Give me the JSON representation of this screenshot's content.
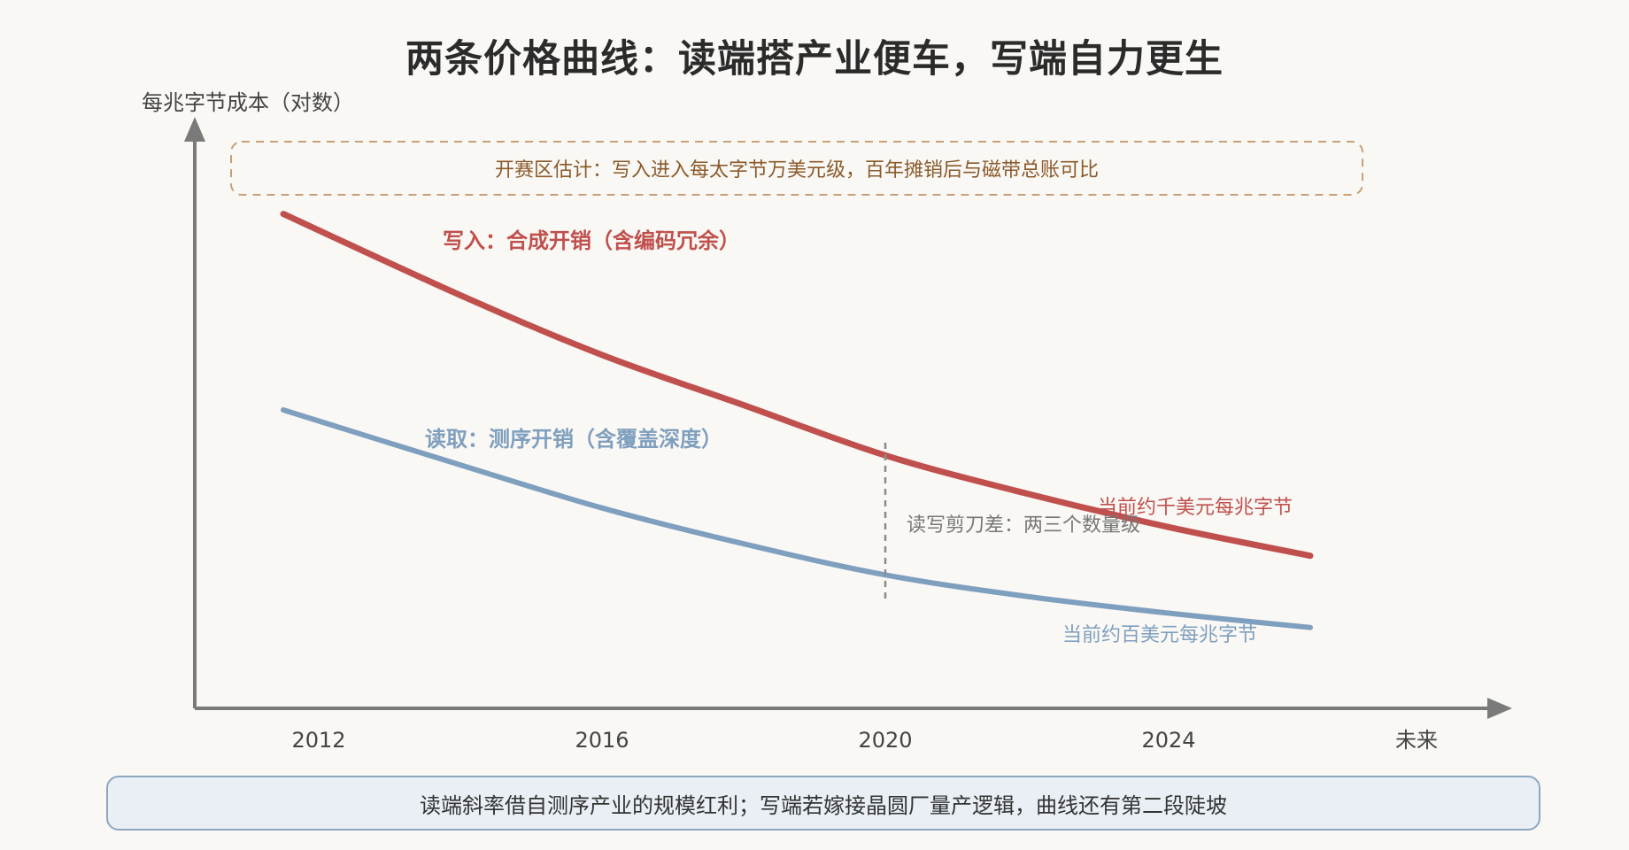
{
  "title": "两条价格曲线：读端搭产业便车，写端自力更生",
  "colors": {
    "write": "#c0504d",
    "read": "#7f9fbe",
    "axis": "#7a7a7a",
    "callout_border": "#c8a077",
    "callout_text": "#8a5a2b",
    "gap_text": "#777777",
    "footer_border": "#8ea7bf",
    "footer_bg": "#e9eff5"
  },
  "chart_data": {
    "type": "line",
    "scale": "log (no numeric ticks shown)",
    "ylabel": "每兆字节成本（对数）",
    "categories": [
      "2012",
      "2016",
      "2020",
      "2024",
      "未来"
    ],
    "series": [
      {
        "name": "写入：合成开销（含编码冗余）",
        "color": "#c0504d",
        "x": [
          2011.5,
          2014,
          2016,
          2018,
          2020,
          2022,
          2024,
          2026
        ],
        "values": [
          0.96,
          0.79,
          0.665,
          0.56,
          0.455,
          0.375,
          0.305,
          0.245
        ]
      },
      {
        "name": "读取：测序开销（含覆盖深度）",
        "color": "#7f9fbe",
        "x": [
          2011.5,
          2014,
          2016,
          2018,
          2020,
          2022,
          2024,
          2026
        ],
        "values": [
          0.55,
          0.435,
          0.345,
          0.27,
          0.205,
          0.16,
          0.125,
          0.095
        ]
      }
    ],
    "annotations": [
      {
        "text": "开赛区估计：写入进入每太字节万美元级，百年摊销后与磁带总账可比",
        "kind": "callout"
      },
      {
        "text": "读写剪刀差：两三个数量级",
        "kind": "gap",
        "x": 2020
      },
      {
        "text": "当前约千美元每兆字节",
        "kind": "series_note",
        "series": 0,
        "x": 2024
      },
      {
        "text": "当前约百美元每兆字节",
        "kind": "series_note",
        "series": 1,
        "x": 2024
      }
    ]
  },
  "footer": "读端斜率借自测序产业的规模红利；写端若嫁接晶圆厂量产逻辑，曲线还有第二段陡坡"
}
